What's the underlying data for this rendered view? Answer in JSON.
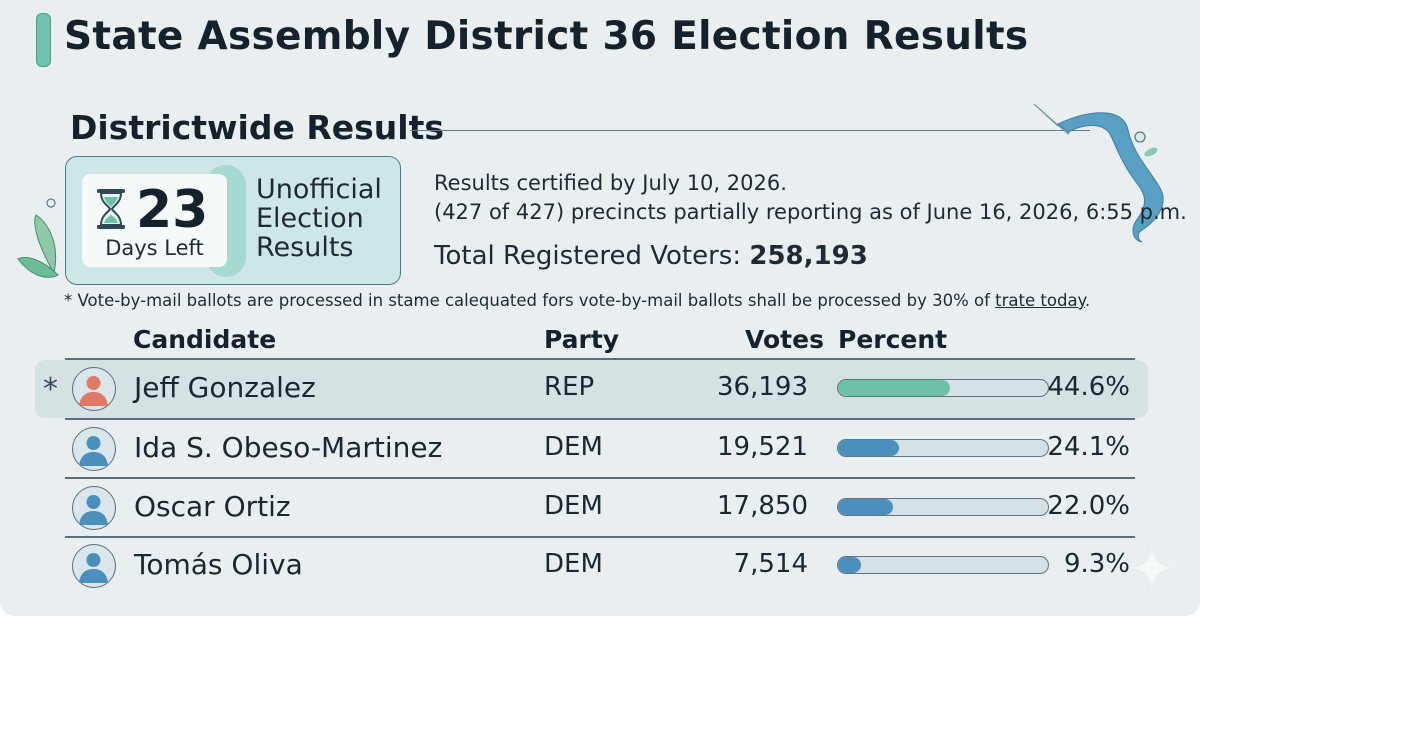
{
  "header": {
    "title": "State Assembly District 36 Election Results"
  },
  "section": {
    "title": "Districtwide Results"
  },
  "countdown": {
    "number": "23",
    "caption": "Days Left",
    "status_label": "Unofficial Election Results"
  },
  "info": {
    "certified": "Results certified by July 10, 2026.",
    "precincts": "(427 of 427) precincts partially reporting as of June 16, 2026, 6:55 p.m.",
    "registered_label": "Total Registered Voters: ",
    "registered_value": "258,193"
  },
  "footnote": {
    "text": "* Vote-by-mail ballots are processed in stame calequated fors vote-by-mail ballots shall be processed by 30% of ",
    "link": "trate today",
    "end": "."
  },
  "table": {
    "headers": {
      "candidate": "Candidate",
      "party": "Party",
      "votes": "Votes",
      "percent": "Percent"
    },
    "winner_mark": "*",
    "rows": [
      {
        "name": "Jeff Gonzalez",
        "party": "REP",
        "votes": "36,193",
        "percent": "44.6%",
        "share": 0.446,
        "bar_color": "#6cc1a8",
        "avatar_color": "#e07a68",
        "winner": true
      },
      {
        "name": "Ida S. Obeso-Martinez",
        "party": "DEM",
        "votes": "19,521",
        "percent": "24.1%",
        "share": 0.241,
        "bar_color": "#4b8fbd",
        "avatar_color": "#4b8fbd",
        "winner": false
      },
      {
        "name": "Oscar Ortiz",
        "party": "DEM",
        "votes": "17,850",
        "percent": "22.0%",
        "share": 0.22,
        "bar_color": "#4b8fbd",
        "avatar_color": "#4b8fbd",
        "winner": false
      },
      {
        "name": "Tomás Oliva",
        "party": "DEM",
        "votes": "7,514",
        "percent": "9.3%",
        "share": 0.093,
        "bar_color": "#4b8fbd",
        "avatar_color": "#4b8fbd",
        "winner": false
      }
    ]
  },
  "colors": {
    "accent": "#72c2b0",
    "card_bg": "#e9eef1",
    "badge_bg": "#cde6e6",
    "ribbon": "#5aa0c4"
  }
}
